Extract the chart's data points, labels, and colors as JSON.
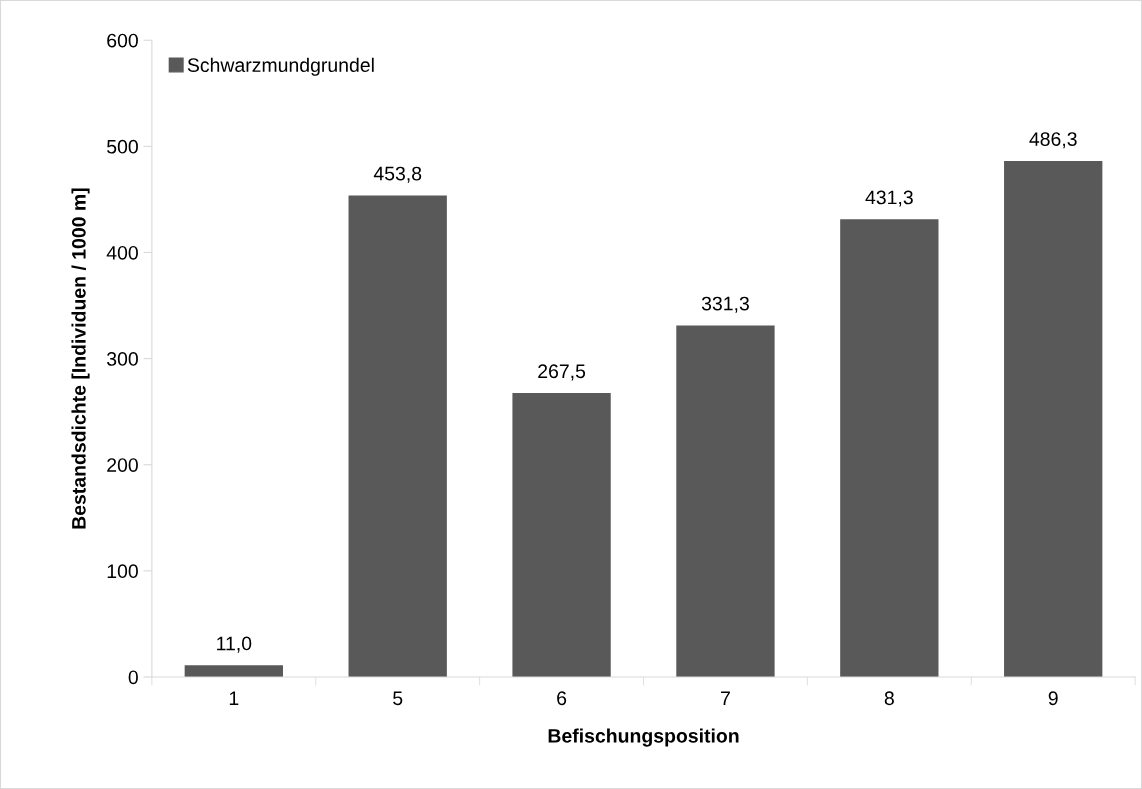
{
  "chart_data": {
    "type": "bar",
    "xlabel": "Befischungsposition",
    "ylabel": "Bestandsdichte [Individuen / 1000 m]",
    "categories": [
      "1",
      "5",
      "6",
      "7",
      "8",
      "9"
    ],
    "series": [
      {
        "name": "Schwarzmundgrundel",
        "color": "#595959",
        "values": [
          11.0,
          453.8,
          267.5,
          331.3,
          431.3,
          486.3
        ],
        "value_labels": [
          "11,0",
          "453,8",
          "267,5",
          "331,3",
          "431,3",
          "486,3"
        ]
      }
    ],
    "ylim": [
      0,
      600
    ],
    "yticks": [
      0,
      100,
      200,
      300,
      400,
      500,
      600
    ],
    "grid": false,
    "legend": "top left"
  }
}
